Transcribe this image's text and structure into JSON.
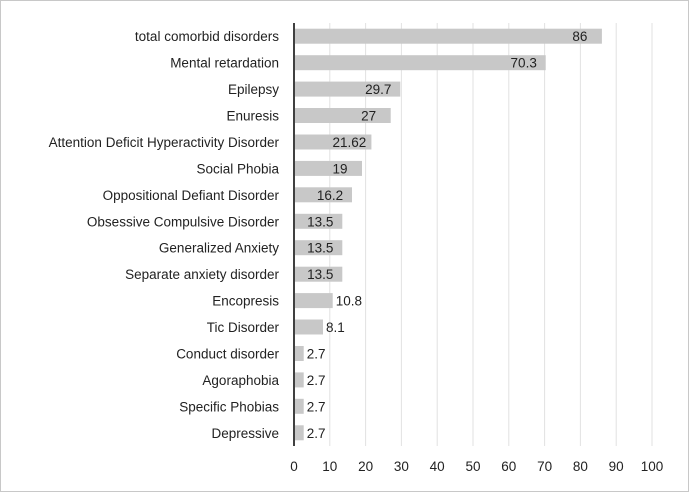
{
  "chart_data": {
    "type": "bar",
    "orientation": "horizontal",
    "title": "",
    "xlabel": "",
    "ylabel": "",
    "categories": [
      "total comorbid disorders",
      "Mental retardation",
      "Epilepsy",
      "Enuresis",
      "Attention Deficit Hyperactivity Disorder",
      "Social Phobia",
      "Oppositional Defiant Disorder",
      "Obsessive Compulsive Disorder",
      "Generalized Anxiety",
      "Separate anxiety disorder",
      "Encopresis",
      "Tic Disorder",
      "Conduct disorder",
      "Agoraphobia",
      "Specific Phobias",
      "Depressive"
    ],
    "values": [
      86,
      70.3,
      29.7,
      27,
      21.62,
      19,
      16.2,
      13.5,
      13.5,
      13.5,
      10.8,
      8.1,
      2.7,
      2.7,
      2.7,
      2.7
    ],
    "value_labels": [
      "86",
      "70.3",
      "29.7",
      "27",
      "21.62",
      "19",
      "16.2",
      "13.5",
      "13.5",
      "13.5",
      "10.8",
      "8.1",
      "2.7",
      "2.7",
      "2.7",
      "2.7"
    ],
    "xlim": [
      0,
      100
    ],
    "x_ticks": [
      0,
      10,
      20,
      30,
      40,
      50,
      60,
      70,
      80,
      90,
      100
    ],
    "grid": true,
    "legend": "none",
    "colors": {
      "bar": "#c8c8c8",
      "grid": "#e2e2e2",
      "axis": "#404040",
      "text": "#222222"
    }
  }
}
